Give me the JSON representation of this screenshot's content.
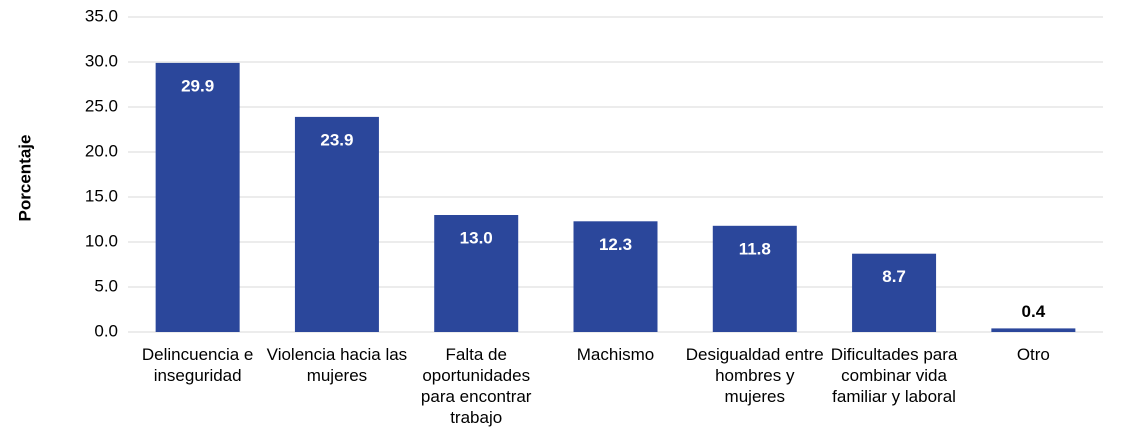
{
  "chart_data": {
    "type": "bar",
    "y_label": "Porcentaje",
    "categories": [
      "Delincuencia e inseguridad",
      "Violencia hacia las mujeres",
      "Falta de oportunidades para encontrar trabajo",
      "Machismo",
      "Desigualdad entre hombres y mujeres",
      "Dificultades para combinar vida familiar y laboral",
      "Otro"
    ],
    "values": [
      29.9,
      23.9,
      13.0,
      12.3,
      11.8,
      8.7,
      0.4
    ],
    "value_labels": [
      "29.9",
      "23.9",
      "13.0",
      "12.3",
      "11.8",
      "8.7",
      "0.4"
    ],
    "color": "#2b479b",
    "ylim": [
      0,
      35
    ],
    "yticks": [
      {
        "value": 0,
        "label": "0.0"
      },
      {
        "value": 5,
        "label": "5.0"
      },
      {
        "value": 10,
        "label": "10.0"
      },
      {
        "value": 15,
        "label": "15.0"
      },
      {
        "value": 20,
        "label": "20.0"
      },
      {
        "value": 25,
        "label": "25.0"
      },
      {
        "value": 30,
        "label": "30.0"
      },
      {
        "value": 35,
        "label": "35.0"
      }
    ],
    "grid": true
  }
}
